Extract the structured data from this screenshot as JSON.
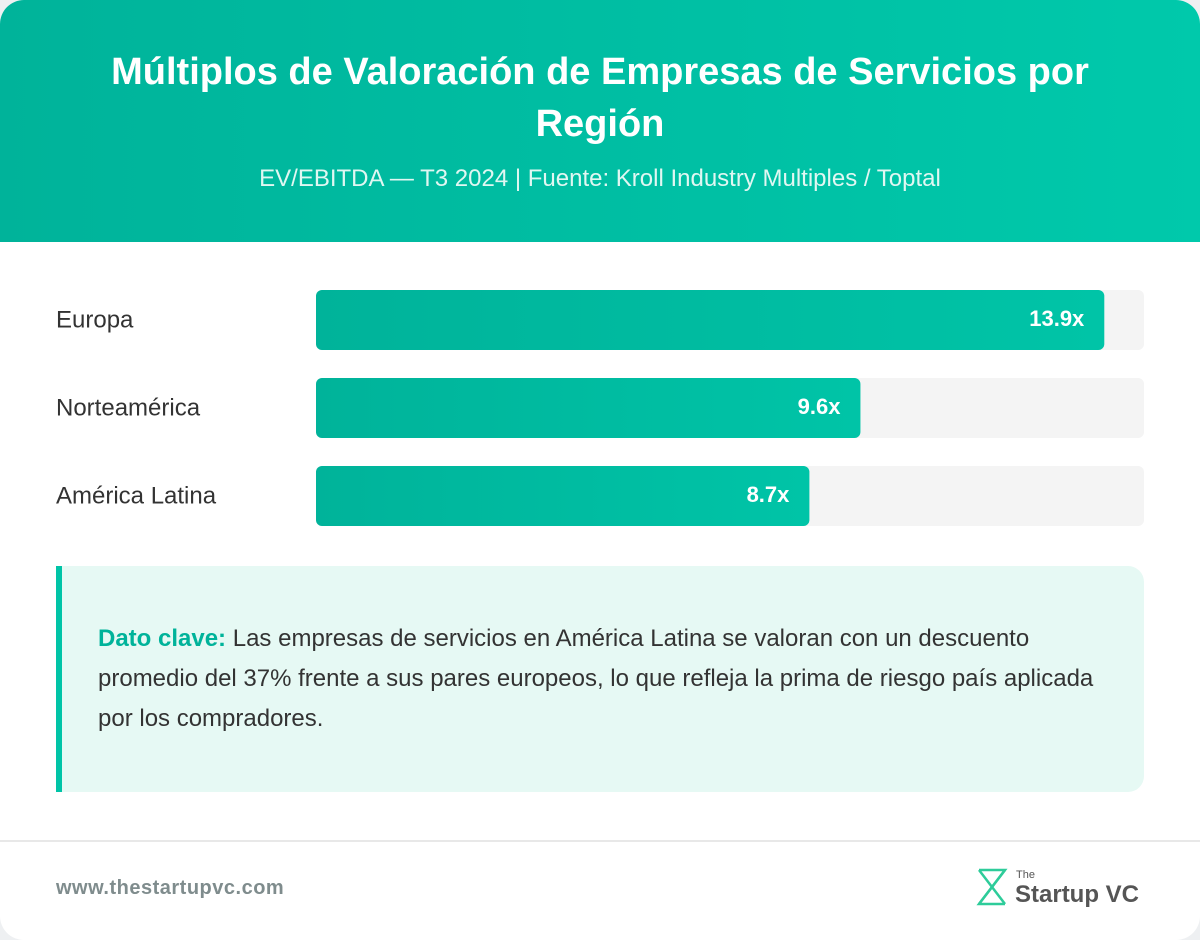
{
  "chart_data": {
    "type": "bar",
    "orientation": "horizontal",
    "title": "Múltiplos de Valoración de Empresas de Servicios por Región",
    "subtitle": "EV/EBITDA — T3 2024 | Fuente: Kroll Industry Multiples / Toptal",
    "categories": [
      "Europa",
      "Norteamérica",
      "América Latina"
    ],
    "values": [
      13.9,
      9.6,
      8.7
    ],
    "value_labels": [
      "13.9x",
      "9.6x",
      "8.7x"
    ],
    "xlim": [
      0,
      14.6
    ],
    "color": "#00c4a7"
  },
  "note": {
    "label": "Dato clave:",
    "text": "Las empresas de servicios en América Latina se valoran con un descuento promedio del 37% frente a sus pares europeos, lo que refleja la prima de riesgo país aplicada por los compradores."
  },
  "footer": {
    "url": "www.thestartupvc.com",
    "logo_small": "The",
    "logo": "Startup VC"
  }
}
